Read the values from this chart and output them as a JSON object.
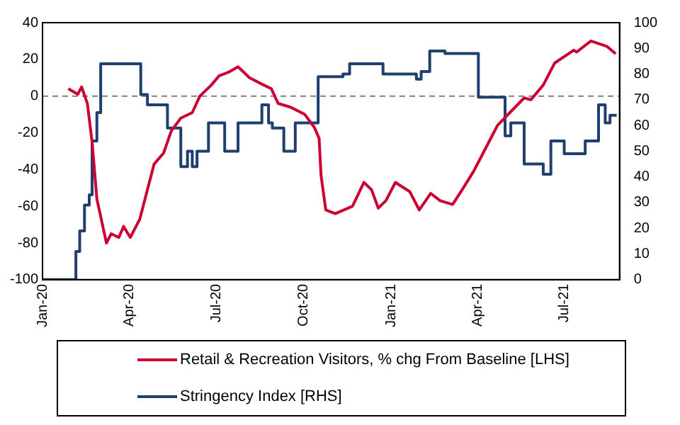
{
  "chart_data": {
    "type": "line",
    "xlim": [
      "2020-01-01",
      "2021-08-28"
    ],
    "xticks": [
      {
        "value": "2020-01-01",
        "label": "Jan-20"
      },
      {
        "value": "2020-04-01",
        "label": "Apr-20"
      },
      {
        "value": "2020-07-01",
        "label": "Jul-20"
      },
      {
        "value": "2020-10-01",
        "label": "Oct-20"
      },
      {
        "value": "2021-01-01",
        "label": "Jan-21"
      },
      {
        "value": "2021-04-01",
        "label": "Apr-21"
      },
      {
        "value": "2021-07-01",
        "label": "Jul-21"
      }
    ],
    "ylim": [
      -100,
      40
    ],
    "yticks": [
      -100,
      -80,
      -60,
      -40,
      -20,
      0,
      20,
      40
    ],
    "y2lim": [
      0,
      100
    ],
    "y2ticks": [
      0,
      10,
      20,
      30,
      40,
      50,
      60,
      70,
      80,
      90,
      100
    ],
    "grid": false,
    "legend": "bottom",
    "ref_lines": [
      {
        "axis": "y",
        "value": 0,
        "color": "#808080",
        "line_style": "dashed"
      }
    ],
    "series": [
      {
        "name": "Retail & Recreation Visitors, % chg From Baseline [LHS]",
        "color": "#cc0033",
        "type": "line",
        "x": [
          "2020-01-28",
          "2020-02-07",
          "2020-02-11",
          "2020-02-17",
          "2020-02-22",
          "2020-02-27",
          "2020-03-08",
          "2020-03-13",
          "2020-03-21",
          "2020-03-26",
          "2020-04-02",
          "2020-04-12",
          "2020-04-20",
          "2020-04-27",
          "2020-05-07",
          "2020-05-15",
          "2020-05-25",
          "2020-06-06",
          "2020-06-14",
          "2020-06-26",
          "2020-07-04",
          "2020-07-14",
          "2020-07-24",
          "2020-08-05",
          "2020-08-20",
          "2020-08-28",
          "2020-09-04",
          "2020-09-17",
          "2020-10-02",
          "2020-10-12",
          "2020-10-17",
          "2020-10-19",
          "2020-10-24",
          "2020-11-03",
          "2020-11-21",
          "2020-12-03",
          "2020-12-11",
          "2020-12-18",
          "2020-12-26",
          "2021-01-05",
          "2021-01-20",
          "2021-01-30",
          "2021-02-11",
          "2021-02-21",
          "2021-03-06",
          "2021-03-16",
          "2021-03-28",
          "2021-04-10",
          "2021-04-22",
          "2021-05-05",
          "2021-05-20",
          "2021-05-27",
          "2021-06-09",
          "2021-06-21",
          "2021-07-11",
          "2021-07-14",
          "2021-07-29",
          "2021-08-15",
          "2021-08-24"
        ],
        "values": [
          4,
          1,
          5,
          -4,
          -25,
          -56,
          -80,
          -75,
          -77,
          -71,
          -77,
          -67,
          -51,
          -37,
          -31,
          -19,
          -12,
          -9,
          0,
          6,
          11,
          13,
          16,
          10,
          6,
          4,
          -4,
          -6,
          -10,
          -17,
          -23,
          -43,
          -62,
          -64,
          -60,
          -47,
          -51,
          -61,
          -57,
          -47,
          -52,
          -62,
          -53,
          -57,
          -59,
          -51,
          -41,
          -28,
          -16,
          -9,
          -1,
          -2,
          6,
          18,
          25,
          24,
          30,
          27,
          23
        ]
      },
      {
        "name": "Stringency Index [RHS]",
        "color": "#1f3f6e",
        "type": "step",
        "axis": "y2",
        "x": [
          "2020-01-01",
          "2020-02-05",
          "2020-02-09",
          "2020-02-14",
          "2020-02-19",
          "2020-02-22",
          "2020-02-27",
          "2020-03-02",
          "2020-04-13",
          "2020-04-20",
          "2020-05-11",
          "2020-05-25",
          "2020-06-01",
          "2020-06-06",
          "2020-06-11",
          "2020-06-23",
          "2020-07-10",
          "2020-07-24",
          "2020-08-18",
          "2020-08-25",
          "2020-08-29",
          "2020-09-10",
          "2020-09-22",
          "2020-10-16",
          "2020-11-11",
          "2020-11-18",
          "2020-12-23",
          "2021-01-27",
          "2021-02-01",
          "2021-02-10",
          "2021-02-26",
          "2021-04-02",
          "2021-04-30",
          "2021-05-06",
          "2021-05-20",
          "2021-06-09",
          "2021-06-17",
          "2021-07-01",
          "2021-07-23",
          "2021-08-06",
          "2021-08-13",
          "2021-08-18",
          "2021-08-25"
        ],
        "values": [
          0,
          11,
          19,
          29,
          33,
          54,
          65,
          84,
          72,
          68,
          59,
          44,
          50,
          44,
          50,
          61,
          50,
          61,
          68,
          61,
          59,
          50,
          61,
          79,
          80,
          84,
          80,
          78,
          81,
          89,
          88,
          71,
          56,
          61,
          45,
          41,
          54,
          49,
          54,
          68,
          61,
          64,
          64
        ]
      }
    ]
  }
}
